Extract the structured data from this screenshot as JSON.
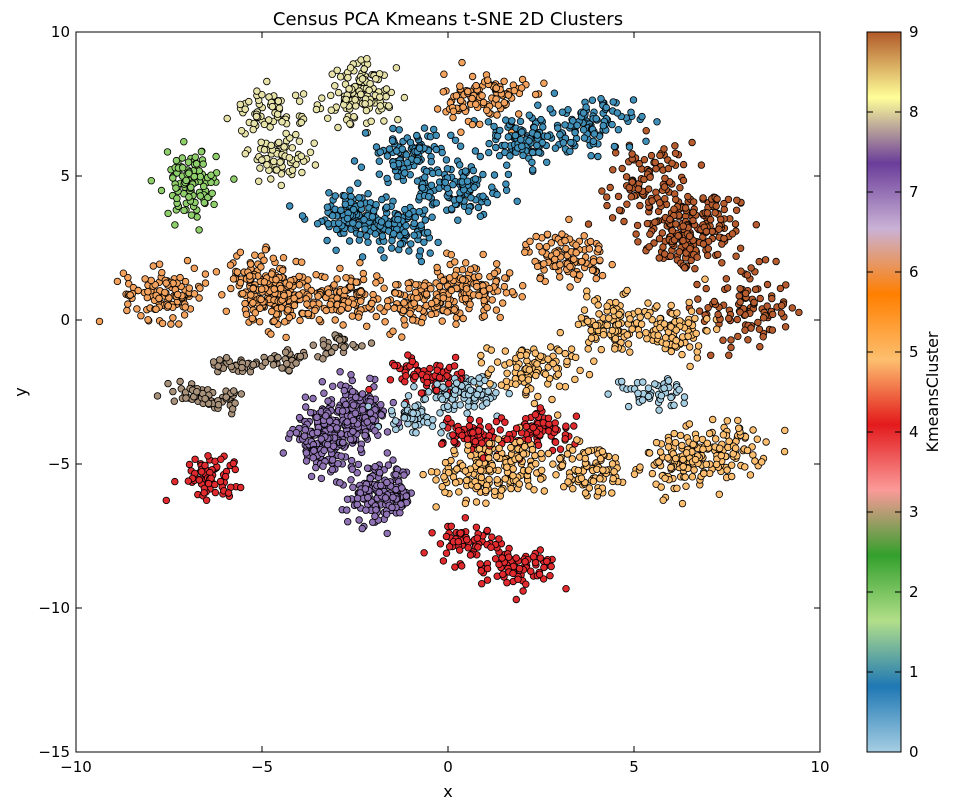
{
  "chart_data": {
    "type": "scatter",
    "title": "Census PCA Kmeans t-SNE 2D Clusters",
    "xlabel": "x",
    "ylabel": "y",
    "xlim": [
      -10,
      10
    ],
    "ylim": [
      -15,
      10
    ],
    "xticks": [
      -10,
      -5,
      0,
      5,
      10
    ],
    "xtick_labels": [
      "−10",
      "−5",
      "0",
      "5",
      "10"
    ],
    "yticks": [
      -15,
      -10,
      -5,
      0,
      5,
      10
    ],
    "ytick_labels": [
      "−15",
      "−10",
      "−5",
      "0",
      "5",
      "10"
    ],
    "grid": false,
    "colorbar": {
      "label": "KmeansCluster",
      "range": [
        0,
        9
      ],
      "ticks": [
        0,
        1,
        2,
        3,
        4,
        5,
        6,
        7,
        8,
        9
      ],
      "tick_labels": [
        "0",
        "1",
        "2",
        "3",
        "4",
        "5",
        "6",
        "7",
        "8",
        "9"
      ],
      "colormap": "Paired",
      "colors": [
        "#a6cee3",
        "#1f78b4",
        "#b2df8a",
        "#33a02c",
        "#fb9a99",
        "#e31a1c",
        "#fdbf6f",
        "#ff7f00",
        "#cab2d6",
        "#6a3d9a",
        "#ffff99",
        "#b15928"
      ]
    },
    "cluster_colors": {
      "0": "#a6cee3",
      "1": "#3f8fb8",
      "2": "#8fcf6b",
      "3": "#a8917a",
      "4": "#e02a2e",
      "5": "#fdbf6f",
      "6": "#f2a25c",
      "7": "#8e72b3",
      "8": "#e6e2a8",
      "9": "#b65c2e"
    },
    "clusters": [
      {
        "cluster": 9,
        "centers": [
          [
            6.2,
            3.0
          ],
          [
            6.9,
            3.2
          ],
          [
            8.0,
            0.4
          ],
          [
            5.4,
            4.8
          ]
        ],
        "spread": [
          0.6,
          0.7
        ],
        "count": 420
      },
      {
        "cluster": 5,
        "centers": [
          [
            6.3,
            -5.0
          ],
          [
            7.4,
            -4.5
          ],
          [
            2.2,
            -1.8
          ],
          [
            4.3,
            -0.2
          ],
          [
            6.0,
            -0.3
          ],
          [
            1.8,
            -5.0
          ],
          [
            3.8,
            -5.2
          ],
          [
            0.8,
            -5.3
          ]
        ],
        "spread": [
          0.55,
          0.5
        ],
        "count": 760
      },
      {
        "cluster": 6,
        "centers": [
          [
            -7.6,
            0.9
          ],
          [
            -5.0,
            1.4
          ],
          [
            -2.7,
            0.8
          ],
          [
            -0.6,
            0.6
          ],
          [
            0.6,
            1.2
          ],
          [
            3.2,
            2.2
          ],
          [
            1.0,
            7.7
          ],
          [
            -4.4,
            0.7
          ]
        ],
        "spread": [
          0.55,
          0.45
        ],
        "count": 900
      },
      {
        "cluster": 1,
        "centers": [
          [
            -1.4,
            3.2
          ],
          [
            0.3,
            4.5
          ],
          [
            2.0,
            6.2
          ],
          [
            3.8,
            6.8
          ],
          [
            -1.0,
            5.7
          ],
          [
            -2.6,
            3.6
          ]
        ],
        "spread": [
          0.6,
          0.45
        ],
        "count": 640
      },
      {
        "cluster": 7,
        "centers": [
          [
            -3.3,
            -4.1
          ],
          [
            -1.8,
            -6.1
          ],
          [
            -2.5,
            -3.3
          ]
        ],
        "spread": [
          0.45,
          0.5
        ],
        "count": 520
      },
      {
        "cluster": 4,
        "centers": [
          [
            0.6,
            -7.8
          ],
          [
            2.0,
            -8.6
          ],
          [
            -6.5,
            -5.4
          ],
          [
            0.8,
            -4.0
          ],
          [
            2.5,
            -3.9
          ],
          [
            -0.5,
            -1.9
          ]
        ],
        "spread": [
          0.45,
          0.35
        ],
        "count": 420
      },
      {
        "cluster": 8,
        "centers": [
          [
            -4.8,
            7.2
          ],
          [
            -2.2,
            8.2
          ],
          [
            -4.5,
            5.6
          ],
          [
            -2.5,
            7.5
          ]
        ],
        "spread": [
          0.45,
          0.4
        ],
        "count": 260
      },
      {
        "cluster": 2,
        "centers": [
          [
            -6.9,
            4.7
          ]
        ],
        "spread": [
          0.35,
          0.55
        ],
        "count": 110
      },
      {
        "cluster": 3,
        "centers": [
          [
            -6.9,
            -2.5
          ],
          [
            -5.7,
            -1.6
          ],
          [
            -2.9,
            -0.9
          ],
          [
            -4.4,
            -1.4
          ],
          [
            -6.0,
            -2.8
          ]
        ],
        "spread": [
          0.35,
          0.2
        ],
        "count": 150
      },
      {
        "cluster": 0,
        "centers": [
          [
            5.5,
            -2.5
          ],
          [
            -1.0,
            -3.4
          ],
          [
            0.6,
            -2.6
          ],
          [
            0.4,
            -2.4
          ]
        ],
        "spread": [
          0.45,
          0.25
        ],
        "count": 200
      }
    ]
  }
}
